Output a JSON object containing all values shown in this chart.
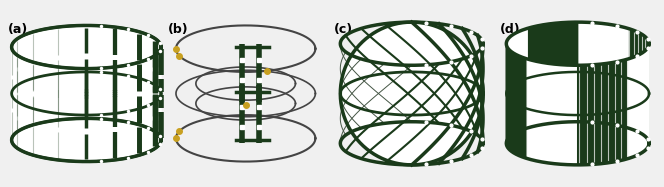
{
  "background_color": "#f0f0f0",
  "labels": [
    "(a)",
    "(b)",
    "(c)",
    "(d)"
  ],
  "label_fontsize": 9,
  "dark_green": "#1a3a1a",
  "black": "#1a1a1a",
  "white": "#ffffff",
  "gold": "#c8a020",
  "light_bg": "#e8e8e8"
}
